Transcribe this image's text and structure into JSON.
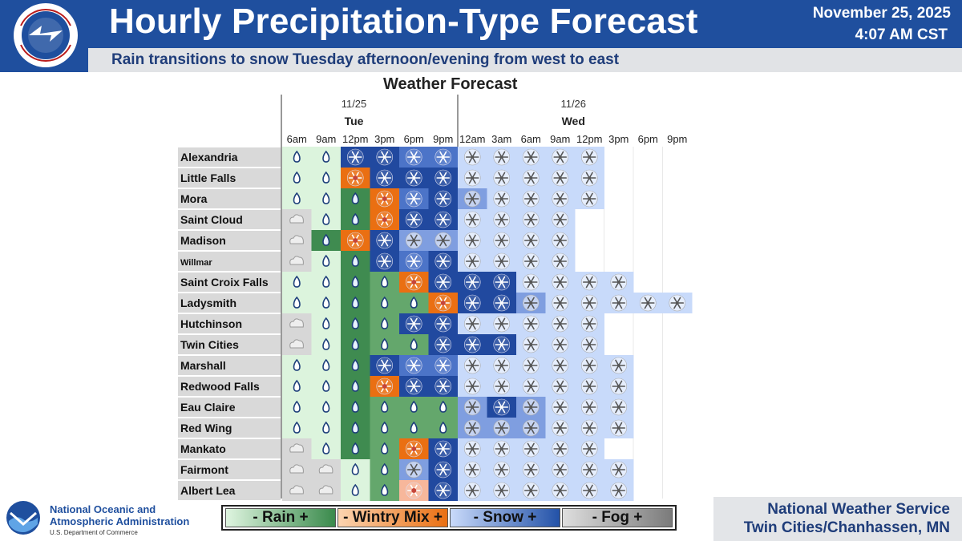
{
  "header": {
    "title": "Hourly Precipitation-Type Forecast",
    "subtitle": "Rain transitions to snow Tuesday afternoon/evening from west to east",
    "date": "November 25, 2025",
    "time": "4:07 AM CST",
    "logo_text": "NATIONAL WEATHER SERVICE"
  },
  "forecast": {
    "title": "Weather Forecast",
    "days": [
      {
        "date": "11/25",
        "name": "Tue"
      },
      {
        "date": "11/26",
        "name": "Wed"
      }
    ],
    "times": [
      "6am",
      "9am",
      "12pm",
      "3pm",
      "6pm",
      "9pm",
      "12am",
      "3am",
      "6am",
      "9am",
      "12pm",
      "3pm",
      "6pm",
      "9pm"
    ],
    "locations": [
      {
        "name": "Alexandria",
        "cells": [
          "R1",
          "R1",
          "S4",
          "S4",
          "S3",
          "S3",
          "S1",
          "S1",
          "S1",
          "S1",
          "S1",
          "",
          "",
          ""
        ]
      },
      {
        "name": "Little Falls",
        "cells": [
          "R1",
          "R1",
          "M3",
          "S4",
          "S4",
          "S4",
          "S1",
          "S1",
          "S1",
          "S1",
          "S1",
          "",
          "",
          ""
        ]
      },
      {
        "name": "Mora",
        "cells": [
          "R1",
          "R1",
          "R3",
          "M3",
          "S3",
          "S4",
          "S2",
          "S1",
          "S1",
          "S1",
          "S1",
          "",
          "",
          ""
        ]
      },
      {
        "name": "Saint Cloud",
        "cells": [
          "F1",
          "R1",
          "R3",
          "M3",
          "S4",
          "S4",
          "S1",
          "S1",
          "S1",
          "S1",
          "",
          "",
          "",
          ""
        ]
      },
      {
        "name": "Madison",
        "cells": [
          "F1",
          "R3",
          "M3",
          "S4",
          "S2",
          "S2",
          "S1",
          "S1",
          "S1",
          "S1",
          "",
          "",
          "",
          ""
        ]
      },
      {
        "name": "Willmar",
        "cells": [
          "F1",
          "R1",
          "R3",
          "S4",
          "S3",
          "S4",
          "S1",
          "S1",
          "S1",
          "S1",
          "",
          "",
          "",
          ""
        ]
      },
      {
        "name": "Saint Croix Falls",
        "cells": [
          "R1",
          "R1",
          "R3",
          "R2",
          "M3",
          "S4",
          "S4",
          "S4",
          "S1",
          "S1",
          "S1",
          "S1",
          "",
          ""
        ]
      },
      {
        "name": "Ladysmith",
        "cells": [
          "R1",
          "R1",
          "R3",
          "R2",
          "R2",
          "M3",
          "S4",
          "S4",
          "S2",
          "S1",
          "S1",
          "S1",
          "S1",
          "S1"
        ]
      },
      {
        "name": "Hutchinson",
        "cells": [
          "F1",
          "R1",
          "R3",
          "R2",
          "S4",
          "S4",
          "S1",
          "S1",
          "S1",
          "S1",
          "S1",
          "",
          "",
          ""
        ]
      },
      {
        "name": "Twin Cities",
        "cells": [
          "F1",
          "R1",
          "R3",
          "R2",
          "R2",
          "S4",
          "S4",
          "S4",
          "S1",
          "S1",
          "S1",
          "",
          "",
          ""
        ]
      },
      {
        "name": "Marshall",
        "cells": [
          "R1",
          "R1",
          "R3",
          "S4",
          "S3",
          "S3",
          "S1",
          "S1",
          "S1",
          "S1",
          "S1",
          "S1",
          "",
          ""
        ]
      },
      {
        "name": "Redwood Falls",
        "cells": [
          "R1",
          "R1",
          "R3",
          "M3",
          "S4",
          "S4",
          "S1",
          "S1",
          "S1",
          "S1",
          "S1",
          "S1",
          "",
          ""
        ]
      },
      {
        "name": "Eau Claire",
        "cells": [
          "R1",
          "R1",
          "R3",
          "R2",
          "R2",
          "R2",
          "S2",
          "S4",
          "S2",
          "S1",
          "S1",
          "S1",
          "",
          ""
        ]
      },
      {
        "name": "Red Wing",
        "cells": [
          "R1",
          "R1",
          "R3",
          "R2",
          "R2",
          "R2",
          "S2",
          "S2",
          "S2",
          "S1",
          "S1",
          "S1",
          "",
          ""
        ]
      },
      {
        "name": "Mankato",
        "cells": [
          "F1",
          "R1",
          "R3",
          "R2",
          "M3",
          "S4",
          "S1",
          "S1",
          "S1",
          "S1",
          "S1",
          "",
          "",
          ""
        ]
      },
      {
        "name": "Fairmont",
        "cells": [
          "F1",
          "F1",
          "R1",
          "R2",
          "S2",
          "S4",
          "S1",
          "S1",
          "S1",
          "S1",
          "S1",
          "S1",
          "",
          ""
        ]
      },
      {
        "name": "Albert Lea",
        "cells": [
          "F1",
          "F1",
          "R1",
          "R2",
          "M1",
          "S4",
          "S1",
          "S1",
          "S1",
          "S1",
          "S1",
          "S1",
          "",
          ""
        ]
      }
    ]
  },
  "legend": {
    "items": [
      {
        "key": "rain",
        "label": "- Rain +"
      },
      {
        "key": "wintry",
        "label": "- Wintry Mix +"
      },
      {
        "key": "snow",
        "label": "- Snow +"
      },
      {
        "key": "fog",
        "label": "- Fog +"
      }
    ]
  },
  "colors": {
    "header_blue": "#1f4f9e",
    "R1": "#dcf4dd",
    "R2": "#64a76c",
    "R3": "#3f8b50",
    "M1": "#f7b79b",
    "M3": "#ea6f12",
    "S1": "#c8dafa",
    "S2": "#7f9ee0",
    "S3": "#4c74c8",
    "S4": "#21499f",
    "F1": "#d7d7d7",
    "label_bg": "#d9d9d9"
  },
  "icons": {
    "R": "raindrop-icon",
    "S": "snowflake-icon",
    "M": "wintry-mix-icon",
    "F": "fog-cloud-icon"
  },
  "footer": {
    "noaa_line1": "National Oceanic and",
    "noaa_line2": "Atmospheric Administration",
    "noaa_line3": "U.S. Department of Commerce",
    "noaa_logo_text": "NOAA",
    "nws_line1": "National Weather Service",
    "nws_line2": "Twin Cities/Chanhassen, MN"
  }
}
